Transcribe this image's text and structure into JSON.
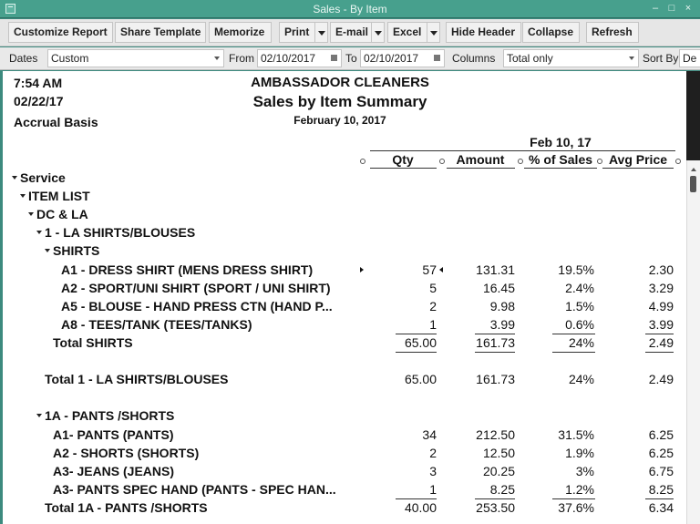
{
  "window": {
    "title": "Sales - By Item"
  },
  "toolbar": {
    "customize": "Customize Report",
    "share": "Share Template",
    "memorize": "Memorize",
    "print": "Print",
    "email": "E-mail",
    "excel": "Excel",
    "hide_header": "Hide Header",
    "collapse": "Collapse",
    "refresh": "Refresh"
  },
  "filters": {
    "dates_label": "Dates",
    "dates_value": "Custom",
    "from_label": "From",
    "from_value": "02/10/2017",
    "to_label": "To",
    "to_value": "02/10/2017",
    "columns_label": "Columns",
    "columns_value": "Total only",
    "sortby_label": "Sort By",
    "sortby_value": "De"
  },
  "report": {
    "time": "7:54 AM",
    "date": "02/22/17",
    "basis": "Accrual Basis",
    "company": "AMBASSADOR CLEANERS",
    "title": "Sales by Item Summary",
    "period": "February 10, 2017",
    "period_header": "Feb 10, 17",
    "columns": {
      "qty": "Qty",
      "amount": "Amount",
      "pct": "% of Sales",
      "avg": "Avg Price"
    },
    "rows": [
      {
        "label": "Service",
        "qty": "",
        "amount": "",
        "pct": "",
        "avg": ""
      },
      {
        "label": "ITEM LIST",
        "qty": "",
        "amount": "",
        "pct": "",
        "avg": ""
      },
      {
        "label": "DC & LA",
        "qty": "",
        "amount": "",
        "pct": "",
        "avg": ""
      },
      {
        "label": "1 - LA SHIRTS/BLOUSES",
        "qty": "",
        "amount": "",
        "pct": "",
        "avg": ""
      },
      {
        "label": "SHIRTS",
        "qty": "",
        "amount": "",
        "pct": "",
        "avg": ""
      },
      {
        "label": "A1 - DRESS SHIRT (MENS DRESS SHIRT)",
        "qty": "57",
        "amount": "131.31",
        "pct": "19.5%",
        "avg": "2.30"
      },
      {
        "label": "A2 - SPORT/UNI SHIRT (SPORT / UNI SHIRT)",
        "qty": "5",
        "amount": "16.45",
        "pct": "2.4%",
        "avg": "3.29"
      },
      {
        "label": "A5 - BLOUSE - HAND PRESS CTN (HAND P...",
        "qty": "2",
        "amount": "9.98",
        "pct": "1.5%",
        "avg": "4.99"
      },
      {
        "label": "A8 - TEES/TANK (TEES/TANKS)",
        "qty": "1",
        "amount": "3.99",
        "pct": "0.6%",
        "avg": "3.99"
      },
      {
        "label": "Total SHIRTS",
        "qty": "65.00",
        "amount": "161.73",
        "pct": "24%",
        "avg": "2.49"
      },
      {
        "label": "Total 1 - LA SHIRTS/BLOUSES",
        "qty": "65.00",
        "amount": "161.73",
        "pct": "24%",
        "avg": "2.49"
      },
      {
        "label": "1A - PANTS /SHORTS",
        "qty": "",
        "amount": "",
        "pct": "",
        "avg": ""
      },
      {
        "label": "A1- PANTS (PANTS)",
        "qty": "34",
        "amount": "212.50",
        "pct": "31.5%",
        "avg": "6.25"
      },
      {
        "label": "A2 - SHORTS (SHORTS)",
        "qty": "2",
        "amount": "12.50",
        "pct": "1.9%",
        "avg": "6.25"
      },
      {
        "label": "A3- JEANS (JEANS)",
        "qty": "3",
        "amount": "20.25",
        "pct": "3%",
        "avg": "6.75"
      },
      {
        "label": "A3- PANTS SPEC HAND (PANTS - SPEC HAN...",
        "qty": "1",
        "amount": "8.25",
        "pct": "1.2%",
        "avg": "8.25"
      },
      {
        "label": "Total 1A - PANTS /SHORTS",
        "qty": "40.00",
        "amount": "253.50",
        "pct": "37.6%",
        "avg": "6.34"
      }
    ]
  }
}
